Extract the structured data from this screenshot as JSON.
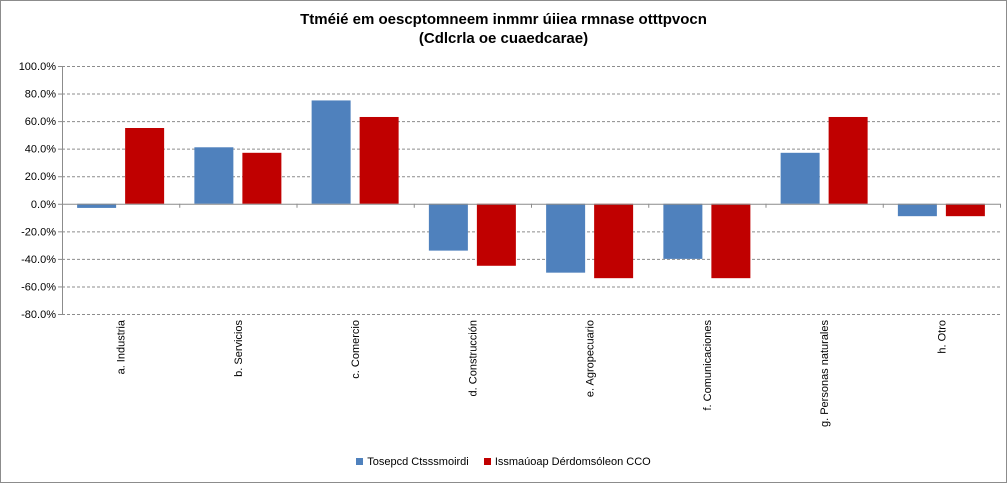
{
  "colors": {
    "series_1": "#4f81bd",
    "series_2": "#c00000",
    "grid": "#8c8c8c",
    "axis": "#8c8c8c"
  },
  "chart_data": {
    "type": "bar",
    "title": [
      "Ttméié em oescptomneem inmmr úiiea rmnase otttpvocn",
      "(Cdlcrla oe cuaedcarae)"
    ],
    "xlabel": "",
    "ylabel": "",
    "ylim": [
      -80,
      100
    ],
    "yticks": [
      100,
      80,
      60,
      40,
      20,
      0,
      -20,
      -40,
      -60,
      -80
    ],
    "ytick_labels": [
      "100.0%",
      "80.0%",
      "60.0%",
      "40.0%",
      "20.0%",
      "0.0%",
      "-20.0%",
      "-40.0%",
      "-60.0%",
      "-80.0%"
    ],
    "grid": true,
    "legend_position": "bottom",
    "categories": [
      "a. Industria",
      "b. Servicios",
      "c. Comercio",
      "d. Construcción",
      "e. Agropecuario",
      "f. Comunicaciones",
      "g. Personas naturales",
      "h. Otro"
    ],
    "series": [
      {
        "name": "Tosepcd Ctsssmoirdi",
        "values": [
          -3,
          41,
          75,
          -34,
          -50,
          -40,
          37,
          -9
        ]
      },
      {
        "name": "Issmaúoap Dérdomsóleon CCO",
        "values": [
          55,
          37,
          63,
          -45,
          -54,
          -54,
          63,
          -9
        ]
      }
    ]
  }
}
